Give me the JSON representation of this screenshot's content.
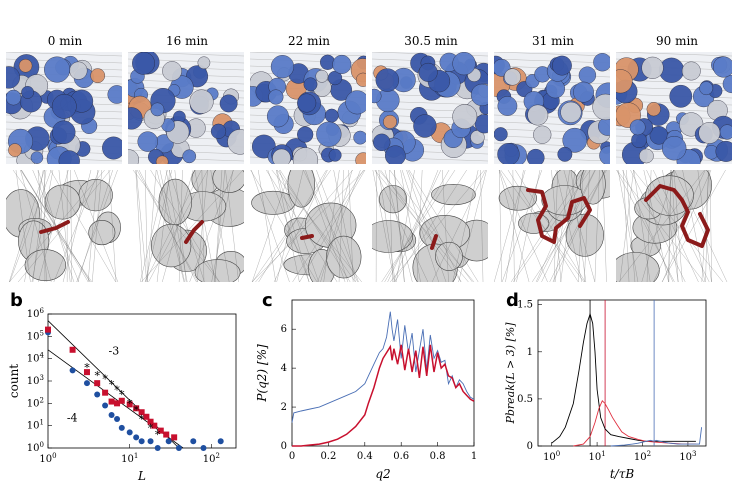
{
  "time_labels": [
    "0 min",
    "16 min",
    "22 min",
    "30.5 min",
    "31 min",
    "90 min"
  ],
  "panel_labels": {
    "b": "b",
    "c": "c",
    "d": "d"
  },
  "colors": {
    "blue": "#1f4fa0",
    "red": "#c8102e",
    "dark_red": "#8b1a1a",
    "black": "#000000"
  },
  "chart_data": [
    {
      "type": "scatter",
      "panel": "b",
      "xlabel": "L",
      "ylabel": "count",
      "xscale": "log",
      "yscale": "log",
      "xlim": [
        1,
        200
      ],
      "ylim": [
        1,
        1000000
      ],
      "x_ticks": [
        "10^0",
        "10^1",
        "10^2"
      ],
      "y_ticks": [
        "10^0",
        "10^1",
        "10^2",
        "10^3",
        "10^4",
        "10^5",
        "10^6"
      ],
      "annotations": [
        "-3",
        "-4"
      ],
      "lines": [
        {
          "label": "-3",
          "x": [
            1,
            40
          ],
          "y": [
            500000,
            1
          ]
        },
        {
          "label": "-4",
          "x": [
            1,
            45
          ],
          "y": [
            25000,
            1
          ]
        }
      ],
      "series": [
        {
          "marker": "circle",
          "color": "#1f4fa0",
          "points": [
            [
              1,
              150000
            ],
            [
              2,
              3000
            ],
            [
              3,
              800
            ],
            [
              4,
              250
            ],
            [
              5,
              80
            ],
            [
              6,
              30
            ],
            [
              7,
              20
            ],
            [
              8,
              8
            ],
            [
              10,
              5
            ],
            [
              12,
              3
            ],
            [
              14,
              2
            ],
            [
              18,
              2
            ],
            [
              22,
              1
            ],
            [
              30,
              2
            ],
            [
              40,
              1
            ],
            [
              60,
              2
            ],
            [
              80,
              1
            ],
            [
              130,
              2
            ]
          ]
        },
        {
          "marker": "square",
          "color": "#c8102e",
          "points": [
            [
              1,
              200000
            ],
            [
              2,
              25000
            ],
            [
              3,
              2500
            ],
            [
              4,
              800
            ],
            [
              5,
              300
            ],
            [
              6,
              120
            ],
            [
              7,
              100
            ],
            [
              8,
              130
            ],
            [
              10,
              90
            ],
            [
              12,
              60
            ],
            [
              14,
              40
            ],
            [
              16,
              25
            ],
            [
              18,
              15
            ],
            [
              20,
              10
            ],
            [
              24,
              6
            ],
            [
              28,
              4
            ],
            [
              35,
              3
            ]
          ]
        },
        {
          "marker": "star",
          "color": "#000000",
          "points": [
            [
              3,
              4000
            ],
            [
              4,
              1800
            ],
            [
              5,
              1200
            ],
            [
              6,
              700
            ],
            [
              7,
              400
            ],
            [
              8,
              250
            ],
            [
              10,
              100
            ],
            [
              12,
              50
            ],
            [
              14,
              20
            ],
            [
              18,
              8
            ],
            [
              22,
              4
            ]
          ]
        }
      ]
    },
    {
      "type": "line",
      "panel": "c",
      "xlabel": "q2",
      "ylabel": "P(q2) [%]",
      "xlim": [
        0,
        1
      ],
      "ylim": [
        0,
        7.5
      ],
      "x_ticks": [
        "0",
        "0.2",
        "0.4",
        "0.6",
        "0.8",
        "1"
      ],
      "y_ticks": [
        "0",
        "2",
        "4",
        "6"
      ],
      "series": [
        {
          "color": "#4a6fb5",
          "x": [
            0,
            0.01,
            0.05,
            0.1,
            0.15,
            0.2,
            0.25,
            0.3,
            0.35,
            0.4,
            0.42,
            0.45,
            0.48,
            0.5,
            0.52,
            0.54,
            0.55,
            0.56,
            0.58,
            0.6,
            0.62,
            0.64,
            0.66,
            0.68,
            0.7,
            0.72,
            0.74,
            0.76,
            0.78,
            0.8,
            0.82,
            0.84,
            0.86,
            0.88,
            0.9,
            0.92,
            0.94,
            0.96,
            0.98,
            1.0
          ],
          "y": [
            1.2,
            1.7,
            1.8,
            1.9,
            2.0,
            2.2,
            2.4,
            2.6,
            2.8,
            3.2,
            3.6,
            4.2,
            4.8,
            5.0,
            5.6,
            6.9,
            6.0,
            5.4,
            6.5,
            4.5,
            6.2,
            4.8,
            5.8,
            3.8,
            4.9,
            6.0,
            3.9,
            5.7,
            4.5,
            4.9,
            4.3,
            4.4,
            3.2,
            3.6,
            3.0,
            3.4,
            3.2,
            2.8,
            2.5,
            2.4
          ]
        },
        {
          "color": "#c8102e",
          "x": [
            0,
            0.05,
            0.1,
            0.15,
            0.2,
            0.25,
            0.3,
            0.35,
            0.4,
            0.42,
            0.45,
            0.48,
            0.5,
            0.52,
            0.54,
            0.55,
            0.56,
            0.58,
            0.6,
            0.62,
            0.64,
            0.66,
            0.68,
            0.7,
            0.72,
            0.74,
            0.76,
            0.78,
            0.8,
            0.82,
            0.84,
            0.86,
            0.88,
            0.9,
            0.92,
            0.94,
            0.96,
            0.98,
            1.0
          ],
          "y": [
            0,
            0,
            0.05,
            0.1,
            0.2,
            0.35,
            0.6,
            1.0,
            1.6,
            2.2,
            3.0,
            4.0,
            4.5,
            4.8,
            5.1,
            4.4,
            5.0,
            4.2,
            5.2,
            3.9,
            5.0,
            3.8,
            4.9,
            3.5,
            5.1,
            3.6,
            5.2,
            3.8,
            4.8,
            4.0,
            4.2,
            3.6,
            3.5,
            3.0,
            3.2,
            2.8,
            2.6,
            2.4,
            2.3
          ]
        }
      ]
    },
    {
      "type": "line",
      "panel": "d",
      "xlabel": "t/τB",
      "ylabel": "Pbreak(L > 3) [%]",
      "xscale": "log",
      "xlim": [
        0.5,
        2500
      ],
      "ylim": [
        0,
        1.55
      ],
      "x_ticks": [
        "10^0",
        "10^1",
        "10^2",
        "10^3"
      ],
      "y_ticks": [
        "0",
        "0.5",
        "1",
        "1.5"
      ],
      "vlines": [
        {
          "x": 7,
          "color": "#000000"
        },
        {
          "x": 15,
          "color": "#c8102e"
        },
        {
          "x": 180,
          "color": "#4a6fb5"
        }
      ],
      "series": [
        {
          "color": "#000000",
          "x": [
            1,
            1.5,
            2,
            3,
            4,
            5,
            6,
            7,
            8,
            9,
            10,
            12,
            15,
            20,
            30,
            50,
            80,
            120,
            200,
            400,
            800,
            1500
          ],
          "y": [
            0.03,
            0.1,
            0.2,
            0.45,
            0.8,
            1.1,
            1.3,
            1.4,
            1.3,
            1.0,
            0.6,
            0.3,
            0.18,
            0.12,
            0.1,
            0.08,
            0.06,
            0.05,
            0.05,
            0.05,
            0.05,
            0.05
          ]
        },
        {
          "color": "#e03040",
          "x": [
            3,
            5,
            7,
            9,
            11,
            13,
            15,
            18,
            22,
            28,
            35,
            50,
            80,
            120,
            200,
            400,
            800,
            1500
          ],
          "y": [
            0,
            0.02,
            0.1,
            0.25,
            0.4,
            0.48,
            0.45,
            0.38,
            0.3,
            0.22,
            0.15,
            0.1,
            0.07,
            0.05,
            0.04,
            0.03,
            0.02,
            0.02
          ]
        },
        {
          "color": "#4a6fb5",
          "x": [
            20,
            40,
            60,
            80,
            100,
            120,
            150,
            180,
            200,
            250,
            300,
            400,
            600,
            900,
            1300,
            1800,
            2000
          ],
          "y": [
            0,
            0.01,
            0.02,
            0.03,
            0.04,
            0.05,
            0.06,
            0.05,
            0.06,
            0.05,
            0.04,
            0.03,
            0.02,
            0.02,
            0.02,
            0.02,
            0.2
          ]
        }
      ]
    }
  ]
}
